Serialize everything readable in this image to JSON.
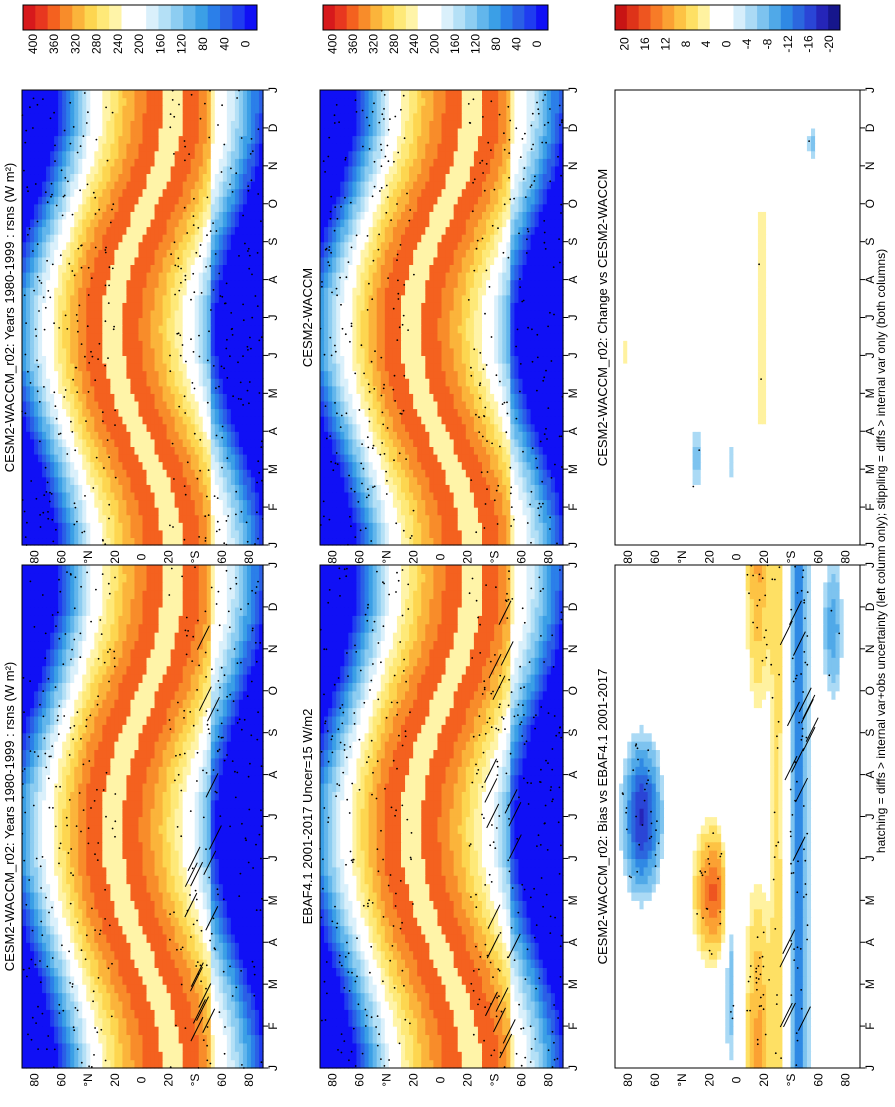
{
  "footnote": "hatching = diffs > internal var+obs uncertainty (left column only); stippling = diffs > internal var only (both columns)",
  "chart_data": [
    {
      "type": "heatmap",
      "title": "CESM2-WACCM_r02: Years 1980-1999 : rsns (W m²)",
      "x": [
        "J",
        "F",
        "M",
        "A",
        "M",
        "J",
        "J",
        "A",
        "S",
        "O",
        "N",
        "D",
        "J"
      ],
      "y": [
        "80",
        "60",
        "°N",
        "20",
        "0",
        "20",
        "°S",
        "60",
        "80"
      ],
      "colorbar": {
        "kind": "abs",
        "ticks": [
          "400",
          "360",
          "320",
          "280",
          "240",
          "200",
          "160",
          "120",
          "80",
          "40",
          "0"
        ]
      },
      "field": "abs",
      "hatching": true
    },
    {
      "type": "heatmap",
      "title": "CESM2-WACCM_r02: Years 1980-1999 : rsns (W m²)",
      "x": [
        "J",
        "F",
        "M",
        "A",
        "M",
        "J",
        "J",
        "A",
        "S",
        "O",
        "N",
        "D",
        "J"
      ],
      "y": [
        "80",
        "60",
        "°N",
        "20",
        "0",
        "20",
        "°S",
        "60",
        "80"
      ],
      "colorbar": {
        "kind": "abs",
        "ticks": [
          "400",
          "360",
          "320",
          "280",
          "240",
          "200",
          "160",
          "120",
          "80",
          "40",
          "0"
        ]
      },
      "field": "abs",
      "hatching": false
    },
    {
      "type": "heatmap",
      "title": "EBAF4.1 2001-2017 Uncer=15 W/m2",
      "x": [
        "J",
        "F",
        "M",
        "A",
        "M",
        "J",
        "J",
        "A",
        "S",
        "O",
        "N",
        "D",
        "J"
      ],
      "y": [
        "80",
        "60",
        "°N",
        "20",
        "0",
        "20",
        "°S",
        "60",
        "80"
      ],
      "colorbar": {
        "kind": "abs",
        "ticks": [
          "400",
          "360",
          "320",
          "280",
          "240",
          "200",
          "160",
          "120",
          "80",
          "40",
          "0"
        ]
      },
      "field": "abs",
      "hatching": true
    },
    {
      "type": "heatmap",
      "title": "CESM2-WACCM",
      "x": [
        "J",
        "F",
        "M",
        "A",
        "M",
        "J",
        "J",
        "A",
        "S",
        "O",
        "N",
        "D",
        "J"
      ],
      "y": [
        "80",
        "60",
        "°N",
        "20",
        "0",
        "20",
        "°S",
        "60",
        "80"
      ],
      "colorbar": {
        "kind": "abs",
        "ticks": [
          "400",
          "360",
          "320",
          "280",
          "240",
          "200",
          "160",
          "120",
          "80",
          "40",
          "0"
        ]
      },
      "field": "abs",
      "hatching": false
    },
    {
      "type": "heatmap",
      "title": "CESM2-WACCM_r02: Bias vs EBAF4.1 2001-2017",
      "x": [
        "J",
        "F",
        "M",
        "A",
        "M",
        "J",
        "J",
        "A",
        "S",
        "O",
        "N",
        "D",
        "J"
      ],
      "y": [
        "80",
        "60",
        "°N",
        "20",
        "0",
        "20",
        "°S",
        "60",
        "80"
      ],
      "colorbar": {
        "kind": "diff",
        "ticks": [
          "20",
          "16",
          "12",
          "8",
          "4",
          "0",
          "-4",
          "-8",
          "-12",
          "-16",
          "-20"
        ]
      },
      "field": "bias",
      "hatching": true
    },
    {
      "type": "heatmap",
      "title": "CESM2-WACCM_r02: Change vs CESM2-WACCM",
      "x": [
        "J",
        "F",
        "M",
        "A",
        "M",
        "J",
        "J",
        "A",
        "S",
        "O",
        "N",
        "D",
        "J"
      ],
      "y": [
        "80",
        "60",
        "°N",
        "20",
        "0",
        "20",
        "°S",
        "60",
        "80"
      ],
      "colorbar": {
        "kind": "diff",
        "ticks": [
          "20",
          "16",
          "12",
          "8",
          "4",
          "0",
          "-4",
          "-8",
          "-12",
          "-16",
          "-20"
        ]
      },
      "field": "change",
      "hatching": false
    }
  ],
  "colors": {
    "abs_scale": [
      "#d7191c",
      "#e8371f",
      "#f4611f",
      "#f88c2a",
      "#fbb43b",
      "#fdd650",
      "#fee978",
      "#fff4a8",
      "#ffffff",
      "#ffffff",
      "#daf0fb",
      "#b4e0f6",
      "#8dcdf1",
      "#62b6ec",
      "#3b9fe6",
      "#2b7fe9",
      "#2a5fe6",
      "#1f3cf0",
      "#1010f5"
    ],
    "diff_scale": [
      "#c81414",
      "#de3319",
      "#ee5520",
      "#f77b27",
      "#fba133",
      "#fdc344",
      "#fee064",
      "#fff2a0",
      "#ffffff",
      "#ffffff",
      "#d6eefb",
      "#abdaf5",
      "#7dc3ef",
      "#50a9e8",
      "#2f89e4",
      "#2b67de",
      "#2a45d6",
      "#2525b8",
      "#16168c"
    ]
  }
}
